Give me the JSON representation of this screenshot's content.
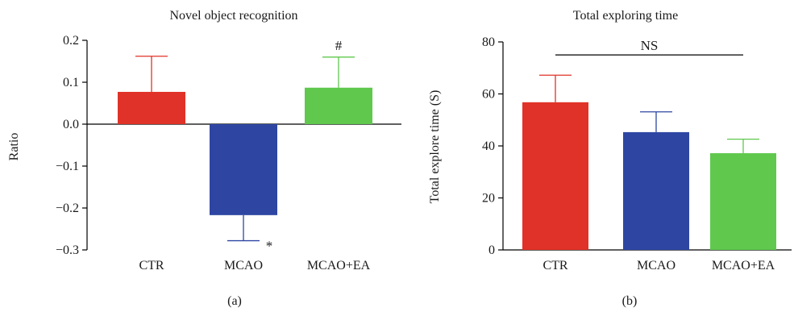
{
  "figure": {
    "panels": [
      "(a)",
      "(b)"
    ]
  },
  "chart_data": [
    {
      "type": "bar",
      "title": "Novel object recognition",
      "ylabel": "Ratio",
      "xlabel": "",
      "categories": [
        "CTR",
        "MCAO",
        "MCAO+EA"
      ],
      "values": [
        0.077,
        -0.217,
        0.087
      ],
      "errors": [
        0.085,
        0.061,
        0.073
      ],
      "colors": [
        "#e03228",
        "#2e46a2",
        "#5fc84d"
      ],
      "ylim": [
        -0.3,
        0.2
      ],
      "yticks": [
        0.2,
        0.1,
        0.0,
        -0.1,
        -0.2,
        -0.3
      ],
      "ytick_labels": [
        "0.2",
        "0.1",
        "0.0",
        "−0.1",
        "−0.2",
        "−0.3"
      ],
      "annotations": [
        {
          "category": "MCAO",
          "text": "*",
          "position": "below-right of error bar"
        },
        {
          "category": "MCAO+EA",
          "text": "#",
          "position": "above error bar"
        }
      ],
      "grid": false,
      "panel_label": "(a)"
    },
    {
      "type": "bar",
      "title": "Total exploring time",
      "ylabel": "Total explore time (S)",
      "xlabel": "",
      "categories": [
        "CTR",
        "MCAO",
        "MCAO+EA"
      ],
      "values": [
        56.8,
        45.3,
        37.2
      ],
      "errors": [
        10.4,
        7.8,
        5.4
      ],
      "colors": [
        "#e03228",
        "#2e46a2",
        "#5fc84d"
      ],
      "ylim": [
        0,
        80
      ],
      "yticks": [
        0,
        20,
        40,
        60,
        80
      ],
      "ytick_labels": [
        "0",
        "20",
        "40",
        "60",
        "80"
      ],
      "annotations": [
        {
          "text": "NS",
          "span": [
            "CTR",
            "MCAO+EA"
          ],
          "y": 75
        }
      ],
      "grid": false,
      "panel_label": "(b)"
    }
  ]
}
